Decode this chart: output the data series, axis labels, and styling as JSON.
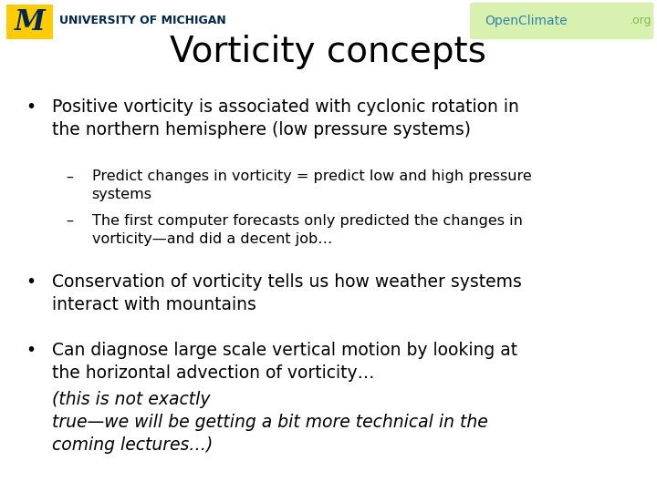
{
  "title": "Vorticity concepts",
  "title_fontsize": 28,
  "title_color": "#000000",
  "background_color": "#ffffff",
  "header_logo_text_M": "M",
  "header_logo_text_rest": "UNIVERSITY OF MICHIGAN",
  "header_openclimate_text1": "OpenClimate",
  "header_openclimate_text2": ".org",
  "bullet1_main": "Positive vorticity is associated with cyclonic rotation in\nthe northern hemisphere (low pressure systems)",
  "bullet1_sub1": "Predict changes in vorticity = predict low and high pressure\nsystems",
  "bullet1_sub2": "The first computer forecasts only predicted the changes in\nvorticity—and did a decent job…",
  "bullet2_main": "Conservation of vorticity tells us how weather systems\ninteract with mountains",
  "bullet3_main_normal": "Can diagnose large scale vertical motion by looking at\nthe horizontal advection of vorticity…",
  "bullet3_main_italic": "(this is not exactly\ntrue—we will be getting a bit more technical in the\ncoming lectures…)",
  "bullet_fontsize": 13.5,
  "sub_bullet_fontsize": 11.5,
  "um_blue": "#00274C",
  "um_maize": "#FFCB05",
  "openclimate_blue": "#2E86AB",
  "openclimate_green": "#7DC142",
  "openclimate_bg": "#d8f0b0"
}
